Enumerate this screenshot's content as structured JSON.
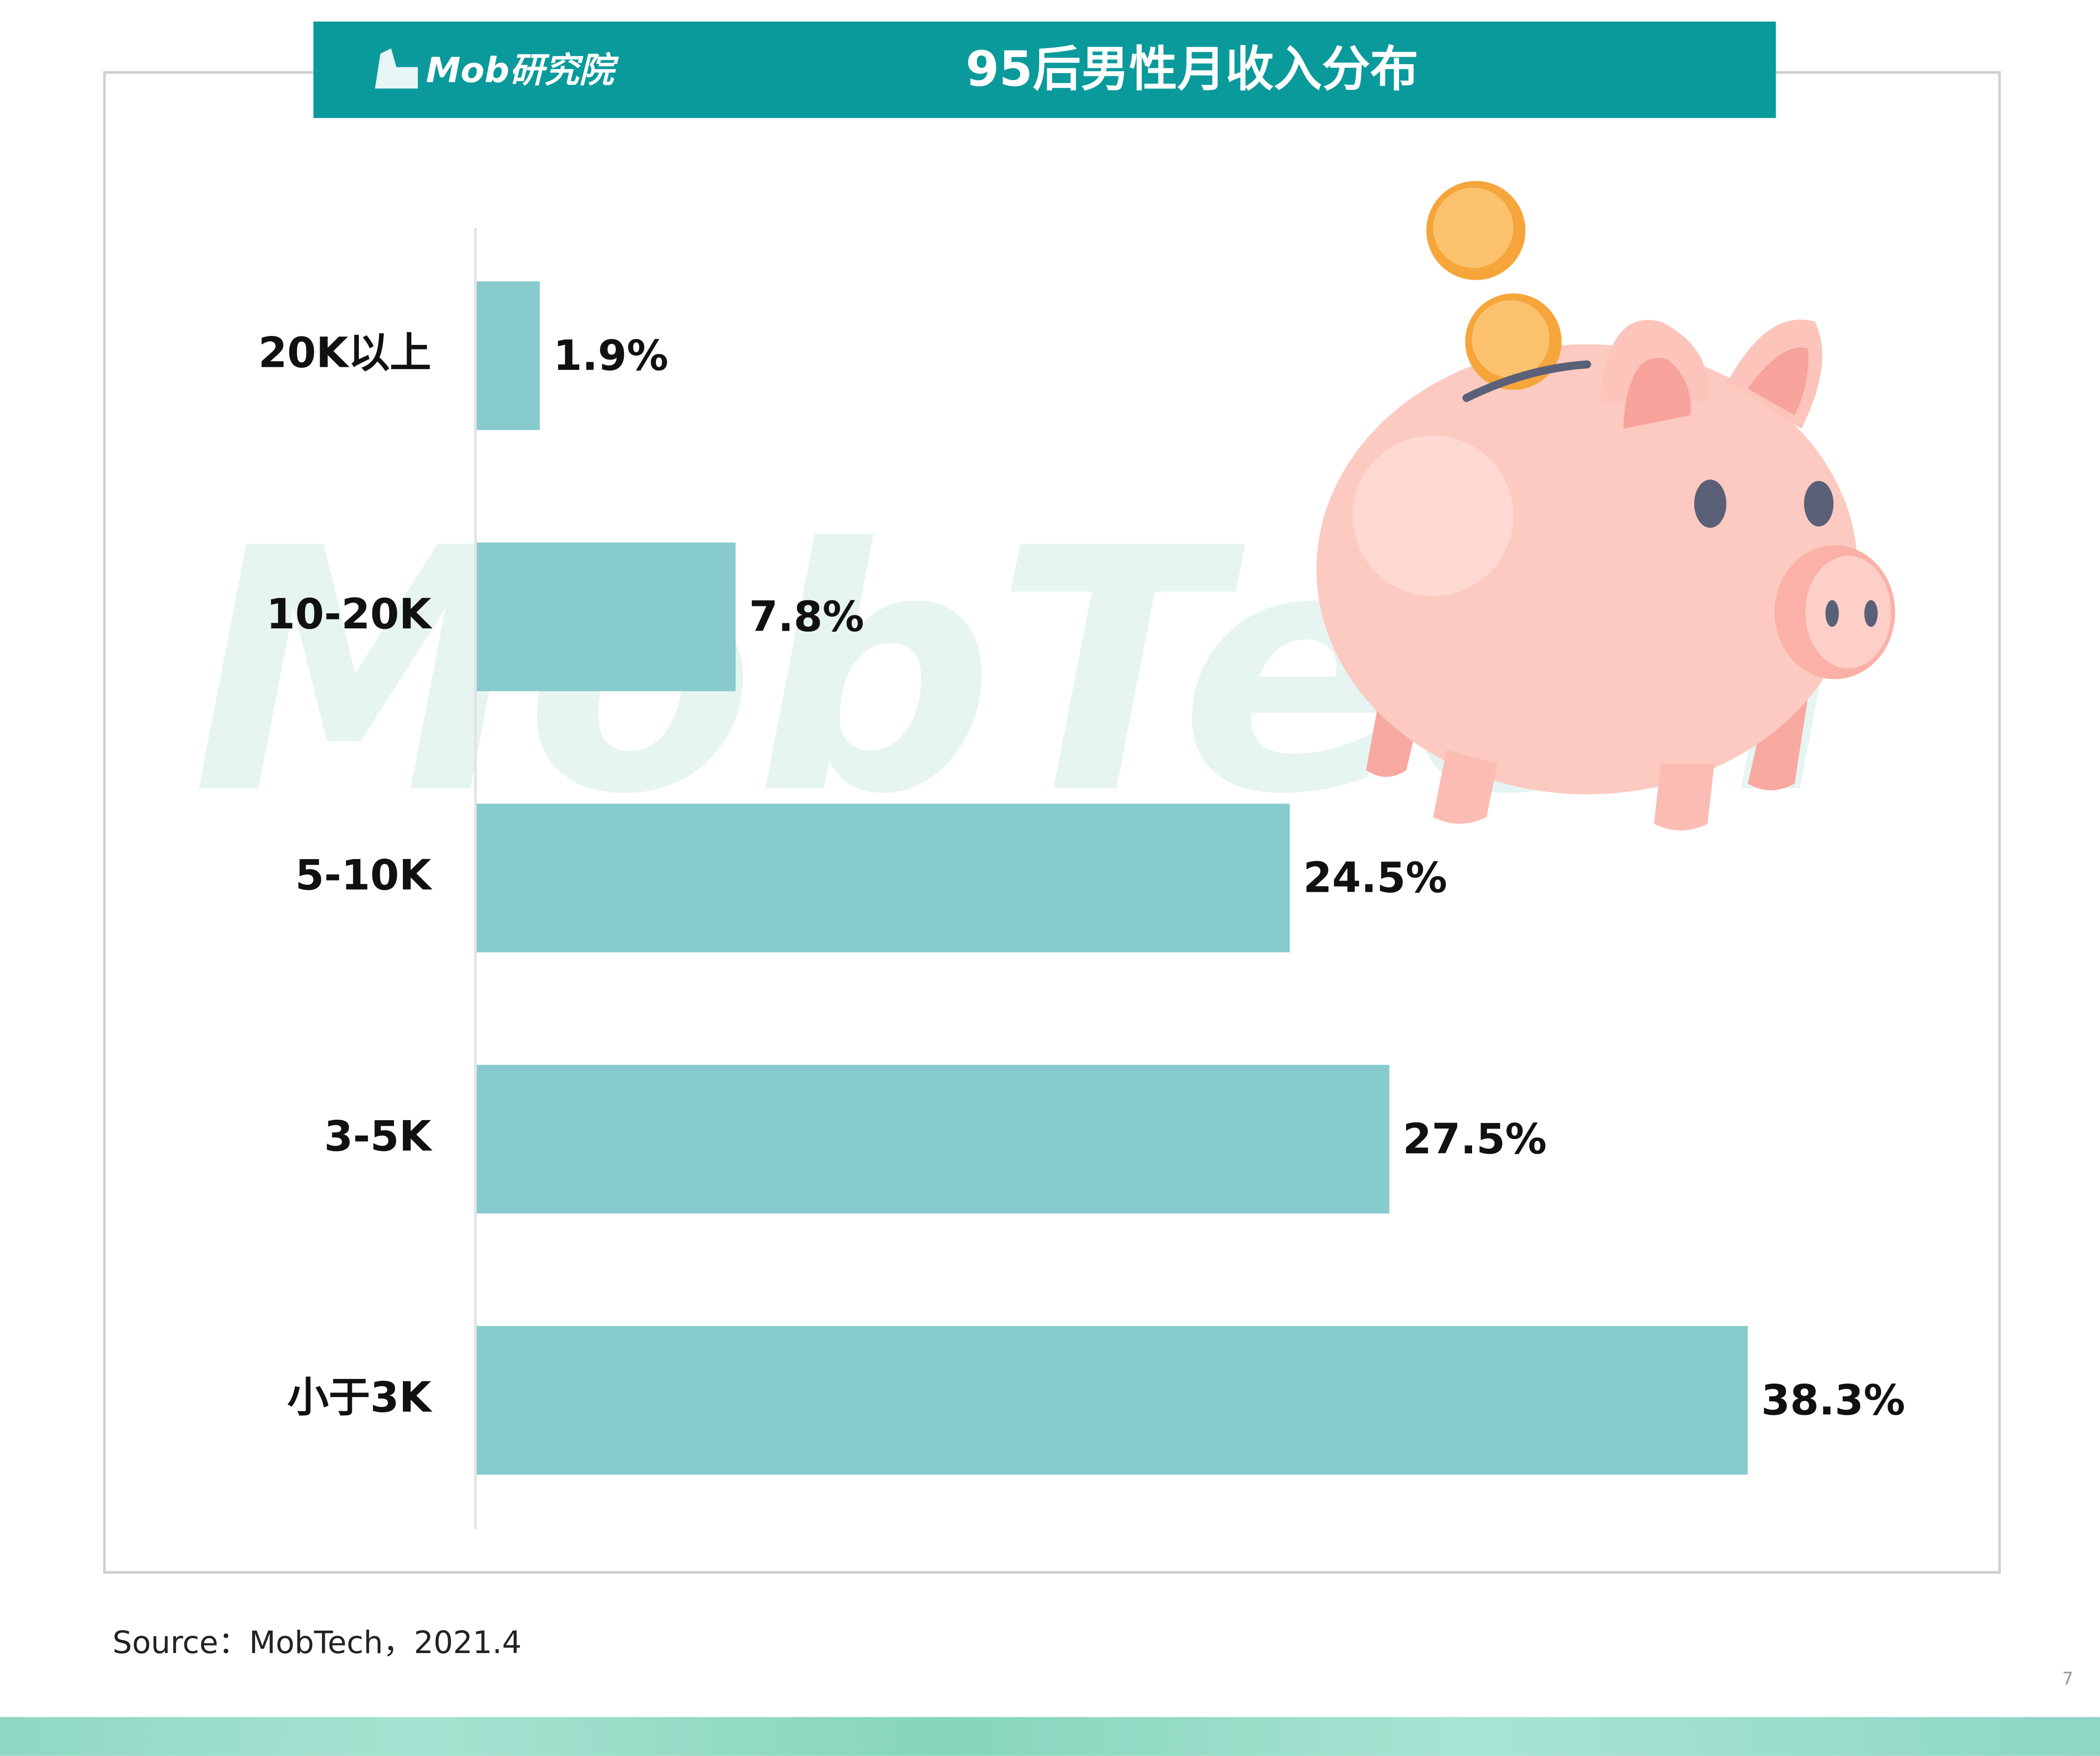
{
  "header": {
    "logo": "Mob研究院",
    "title": "95后男性月收入分布"
  },
  "watermark": "MobTech",
  "chart_data": {
    "type": "bar",
    "orientation": "horizontal",
    "color": "#87cbce",
    "categories": [
      "20K以上",
      "10-20K",
      "5-10K",
      "3-5K",
      "小于3K"
    ],
    "values": [
      1.9,
      7.8,
      24.5,
      27.5,
      38.3
    ],
    "value_labels": [
      "1.9%",
      "7.8%",
      "24.5%",
      "27.5%",
      "38.3%"
    ]
  },
  "footer": {
    "source": "Source：MobTech，2021.4",
    "page": "7"
  }
}
